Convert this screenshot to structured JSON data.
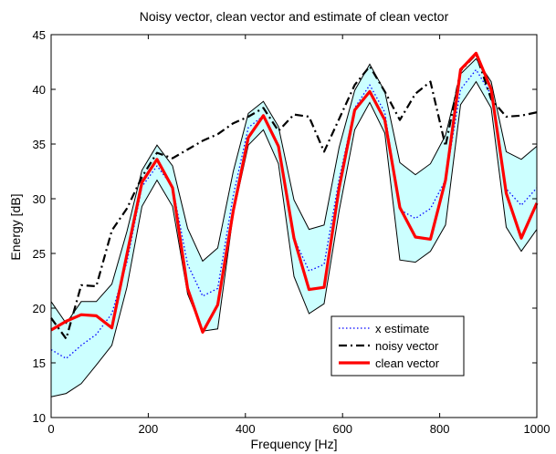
{
  "chart_data": {
    "type": "line",
    "title": "Noisy vector, clean vector and estimate of clean vector",
    "xlabel": "Frequency [Hz]",
    "ylabel": "Energy [dB]",
    "xlim": [
      0,
      1000
    ],
    "ylim": [
      10,
      45
    ],
    "xticks": [
      "0",
      "200",
      "400",
      "600",
      "800",
      "1000"
    ],
    "yticks": [
      "10",
      "15",
      "20",
      "25",
      "30",
      "35",
      "40",
      "45"
    ],
    "grid": false,
    "legend_position": "bottom-center",
    "x": [
      0,
      31,
      62,
      93,
      125,
      156,
      187,
      218,
      250,
      281,
      312,
      343,
      375,
      406,
      437,
      468,
      500,
      531,
      562,
      593,
      625,
      656,
      687,
      718,
      750,
      781,
      812,
      843,
      875,
      906,
      937,
      968,
      1000
    ],
    "band": {
      "upper": [
        20.6,
        18.6,
        20.6,
        20.6,
        22.2,
        27.0,
        32.6,
        34.9,
        33.0,
        27.3,
        24.3,
        25.5,
        32.5,
        37.8,
        38.9,
        36.6,
        29.9,
        27.2,
        27.6,
        34.7,
        39.9,
        42.3,
        39.8,
        33.3,
        32.2,
        33.2,
        35.8,
        41.4,
        42.8,
        40.7,
        34.3,
        33.6,
        34.8
      ],
      "lower": [
        11.9,
        12.2,
        13.1,
        14.8,
        16.6,
        21.9,
        29.3,
        31.7,
        29.3,
        21.3,
        17.9,
        18.1,
        28.6,
        34.9,
        36.3,
        33.2,
        22.9,
        19.5,
        20.4,
        28.9,
        36.3,
        38.8,
        36.0,
        24.4,
        24.2,
        25.2,
        27.6,
        38.6,
        40.7,
        38.3,
        27.4,
        25.2,
        27.2
      ],
      "color": "#ccffff"
    },
    "series": [
      {
        "name": "x estimate",
        "style": "dotted",
        "color": "#0000ff",
        "values": [
          16.2,
          15.4,
          16.6,
          17.6,
          19.5,
          24.2,
          31.1,
          33.0,
          31.1,
          24.0,
          21.1,
          21.8,
          30.3,
          36.5,
          37.6,
          34.9,
          26.4,
          23.4,
          24.0,
          31.8,
          38.3,
          40.4,
          37.9,
          29.0,
          28.2,
          29.1,
          31.7,
          40.0,
          41.8,
          39.5,
          30.9,
          29.4,
          31.0
        ]
      },
      {
        "name": "noisy vector",
        "style": "dashdot",
        "color": "#000000",
        "values": [
          19.1,
          17.2,
          22.1,
          22.0,
          27.1,
          29.1,
          32.0,
          34.2,
          33.7,
          34.5,
          35.3,
          35.9,
          36.9,
          37.5,
          38.3,
          36.2,
          37.7,
          37.5,
          34.3,
          37.3,
          40.4,
          42.1,
          39.8,
          37.2,
          39.6,
          40.7,
          34.8,
          41.7,
          43.2,
          39.1,
          37.5,
          37.6,
          37.9
        ]
      },
      {
        "name": "clean vector",
        "style": "solid",
        "color": "#ff0000",
        "values": [
          18.0,
          18.8,
          19.4,
          19.3,
          18.2,
          24.9,
          31.5,
          33.6,
          31.0,
          21.8,
          17.8,
          20.3,
          28.9,
          35.6,
          37.6,
          34.8,
          26.4,
          21.7,
          21.9,
          31.0,
          38.1,
          39.8,
          37.2,
          29.2,
          26.5,
          26.3,
          31.7,
          41.8,
          43.3,
          40.0,
          30.5,
          26.4,
          29.6
        ]
      }
    ]
  }
}
